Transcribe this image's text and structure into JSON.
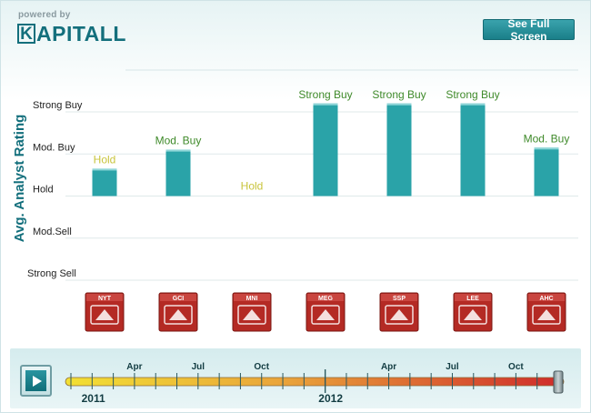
{
  "header": {
    "powered_by": "powered by",
    "logo_k": "K",
    "logo_rest": "APITALL",
    "fullscreen_label": "See Full Screen"
  },
  "chart_data": {
    "type": "bar",
    "ylabel": "Avg. Analyst Rating",
    "y_categories": [
      "Strong Sell",
      "Mod.Sell",
      "Hold",
      "Mod. Buy",
      "Strong Buy"
    ],
    "y_scale": [
      1,
      5
    ],
    "categories": [
      "NYT",
      "GCI",
      "MNI",
      "MEG",
      "SSP",
      "LEE",
      "AHC"
    ],
    "values": [
      3.65,
      4.1,
      3.0,
      5.2,
      5.2,
      5.2,
      4.15
    ],
    "value_labels": [
      "Hold",
      "Mod. Buy",
      "Hold",
      "Strong Buy",
      "Strong Buy",
      "Strong Buy",
      "Mod. Buy"
    ],
    "label_colors": {
      "Hold": "#c8c43c",
      "Mod. Buy": "#3f8a2a",
      "Strong Buy": "#3f8a2a"
    },
    "bar_color": "#2aa3a8",
    "grid": true
  },
  "timeline": {
    "months": [
      "Apr",
      "Jul",
      "Oct",
      "Apr",
      "Jul",
      "Oct"
    ],
    "years": [
      "2011",
      "2012"
    ],
    "position": 1.0
  },
  "colors": {
    "accent": "#136f7c",
    "axis_label": "#136f7c",
    "logo_tile": "#b42a24"
  }
}
